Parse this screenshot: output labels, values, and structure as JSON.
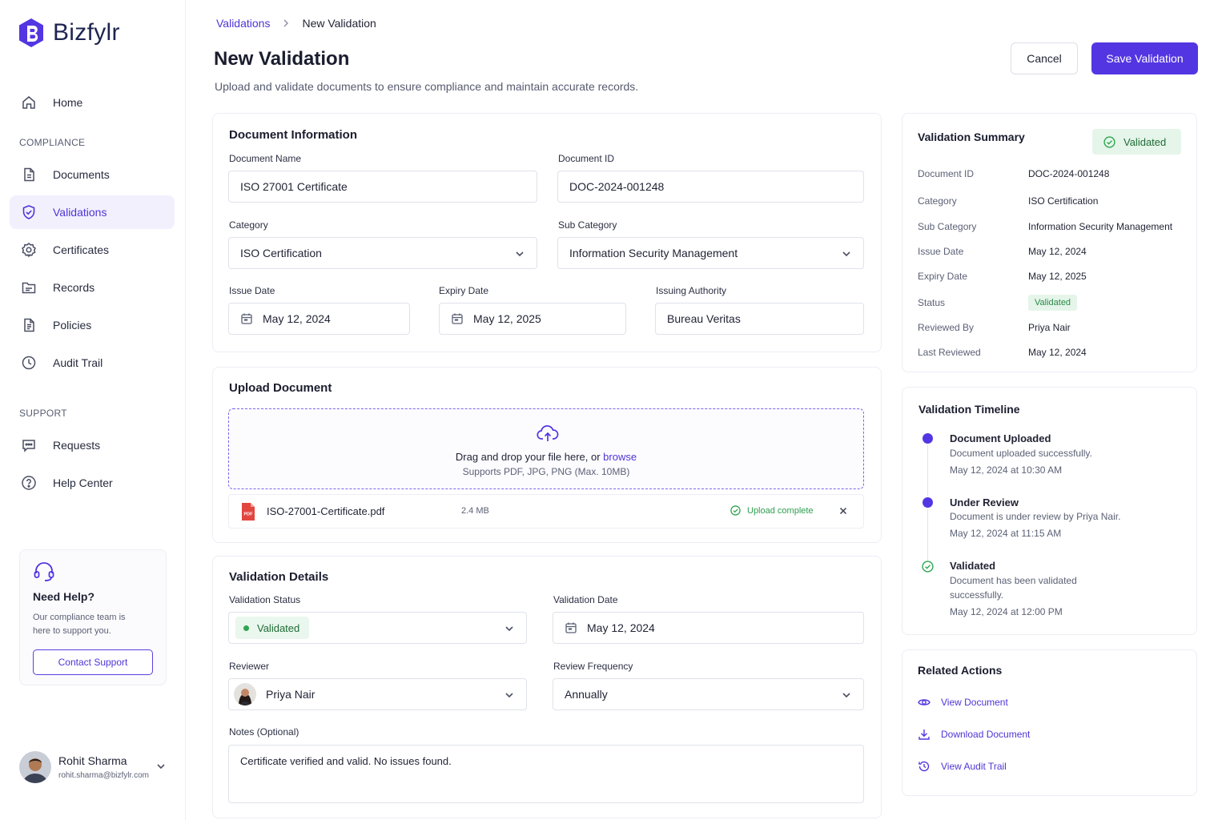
{
  "brand": {
    "name": "Bizfylr",
    "accent": "#5336e2"
  },
  "sidebar": {
    "home": "Home",
    "compliance_section": "COMPLIANCE",
    "compliance_items": [
      {
        "label": "Documents",
        "icon": "document-icon"
      },
      {
        "label": "Validations",
        "icon": "shield-check-icon",
        "active": true
      },
      {
        "label": "Certificates",
        "icon": "badge-icon"
      },
      {
        "label": "Records",
        "icon": "folder-icon"
      },
      {
        "label": "Policies",
        "icon": "policy-icon"
      },
      {
        "label": "Audit Trail",
        "icon": "clock-icon"
      }
    ],
    "support_section": "SUPPORT",
    "support_items": [
      {
        "label": "Requests",
        "icon": "chat-icon"
      },
      {
        "label": "Help Center",
        "icon": "help-icon"
      }
    ],
    "help_card": {
      "title": "Need Help?",
      "text": "Our compliance team is here to support you.",
      "button": "Contact Support"
    },
    "user": {
      "name": "Rohit Sharma",
      "email": "rohit.sharma@bizfylr.com"
    }
  },
  "header": {
    "breadcrumb_parent": "Validations",
    "breadcrumb_current": "New Validation",
    "title": "New Validation",
    "subtitle": "Upload and validate documents to ensure compliance and maintain accurate records.",
    "cancel": "Cancel",
    "save": "Save Validation"
  },
  "doc_info": {
    "title": "Document Information",
    "name_label": "Document Name",
    "name_value": "ISO 27001 Certificate",
    "id_label": "Document ID",
    "id_value": "DOC-2024-001248",
    "category_label": "Category",
    "category_value": "ISO Certification",
    "subcategory_label": "Sub Category",
    "subcategory_value": "Information Security Management",
    "issue_label": "Issue Date",
    "issue_value": "May 12, 2024",
    "expiry_label": "Expiry Date",
    "expiry_value": "May 12, 2025",
    "authority_label": "Issuing Authority",
    "authority_value": "Bureau Veritas"
  },
  "upload": {
    "title": "Upload Document",
    "drop_text": "Drag and drop your file here, or ",
    "browse": "browse",
    "hint": "Supports PDF, JPG, PNG (Max. 10MB)",
    "file_name": "ISO-27001-Certificate.pdf",
    "file_size": "2.4 MB",
    "file_status": "Upload complete",
    "pdf_badge": "PDF"
  },
  "validation": {
    "title": "Validation Details",
    "status_label": "Validation Status",
    "status_value": "Validated",
    "date_label": "Validation Date",
    "date_value": "May 12, 2024",
    "reviewer_label": "Reviewer",
    "reviewer_value": "Priya Nair",
    "frequency_label": "Review Frequency",
    "frequency_value": "Annually",
    "notes_label": "Notes (Optional)",
    "notes_value": "Certificate verified and valid. No issues found."
  },
  "summary": {
    "title": "Validation Summary",
    "badge": "Validated",
    "rows": [
      {
        "label": "Document ID",
        "value": "DOC-2024-001248"
      },
      {
        "label": "Category",
        "value": "ISO Certification"
      },
      {
        "label": "Sub Category",
        "value": "Information Security Management"
      },
      {
        "label": "Issue Date",
        "value": "May 12, 2024"
      },
      {
        "label": "Expiry Date",
        "value": "May 12, 2025"
      },
      {
        "label": "Status",
        "value": "Validated"
      },
      {
        "label": "Reviewed By",
        "value": "Priya Nair"
      },
      {
        "label": "Last Reviewed",
        "value": "May 12, 2024"
      }
    ]
  },
  "timeline": {
    "title": "Validation Timeline",
    "events": [
      {
        "title": "Document Uploaded",
        "desc": "Document uploaded successfully.",
        "time": "May 12, 2024 at 10:30 AM"
      },
      {
        "title": "Under Review",
        "desc": "Document is under review by Priya Nair.",
        "time": "May 12, 2024 at 11:15 AM"
      },
      {
        "title": "Validated",
        "desc": "Document has been validated successfully.",
        "time": "May 12, 2024 at 12:00 PM"
      }
    ]
  },
  "related": {
    "title": "Related Actions",
    "actions": [
      {
        "label": "View Document",
        "icon": "eye-icon"
      },
      {
        "label": "Download Document",
        "icon": "download-icon"
      },
      {
        "label": "View Audit Trail",
        "icon": "history-icon"
      }
    ]
  }
}
